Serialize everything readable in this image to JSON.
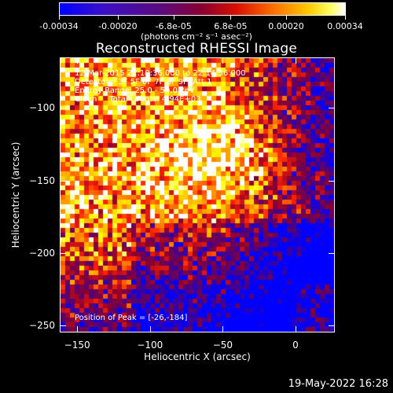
{
  "colorbar": {
    "tick_labels": [
      "-0.00034",
      "-0.00020",
      "-6.8e-05",
      "6.8e-05",
      "0.00020",
      "0.00034"
    ],
    "tick_values": [
      -0.00034,
      -0.0002,
      -6.8e-05,
      6.8e-05,
      0.0002,
      0.00034
    ],
    "range": [
      -0.00034,
      0.00034
    ],
    "units": "(photons cm⁻² s⁻¹ asec⁻²)"
  },
  "title": "Reconstructed RHESSI Image",
  "annotations": {
    "line1": "12-Mar-2015 22:10:36.000 to 22:14:36.000",
    "line2": "Detectors: 3F 5F 6F 7F 8F 9F, Att 1",
    "line3": "Energy Range: 25.0 - 50.0 keV",
    "line4": "Clean     Total counts: 4.94E+03",
    "peak": "Position of Peak = [-26,-184]"
  },
  "chart_data": {
    "type": "heatmap",
    "title": "Reconstructed RHESSI Image",
    "xlabel": "Heliocentric X (arcsec)",
    "ylabel": "Heliocentric Y (arcsec)",
    "xlim": [
      -162,
      27
    ],
    "ylim": [
      -255,
      -65
    ],
    "x_ticks": [
      -150,
      -100,
      -50,
      0
    ],
    "x_tick_labels": [
      "−150",
      "−100",
      "−50",
      "0"
    ],
    "y_ticks": [
      -100,
      -150,
      -200,
      -250
    ],
    "y_tick_labels": [
      "−100",
      "−150",
      "−200",
      "−250"
    ],
    "value_range": [
      -0.00034,
      0.00034
    ],
    "peak_position": [
      -26,
      -184
    ],
    "colormap": [
      "#0000ff",
      "#4b0082",
      "#8b0030",
      "#ff2000",
      "#ff9900",
      "#ffff00",
      "#ffffff"
    ]
  },
  "footer_date": "19-May-2022 16:28"
}
